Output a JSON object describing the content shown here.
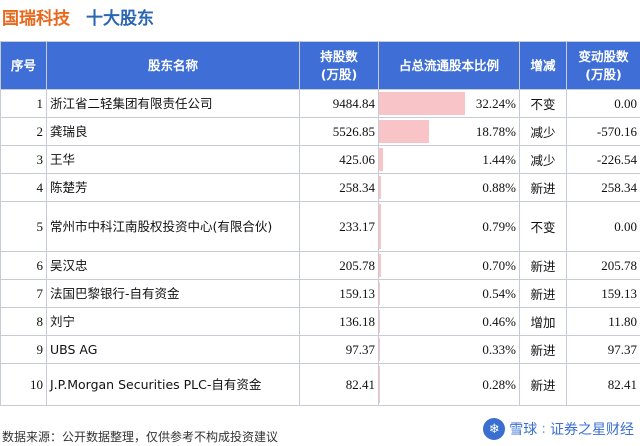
{
  "header": {
    "company": "国瑞科技",
    "subtitle": "十大股东"
  },
  "table": {
    "columns": [
      "序号",
      "股东名称",
      "持股数\n(万股)",
      "占总流通股本比例",
      "增减",
      "变动股数\n(万股)"
    ],
    "rows": [
      {
        "rank": "1",
        "name": "浙江省二轻集团有限责任公司",
        "shares": "9484.84",
        "ratio": "32.24%",
        "ratio_value": 32.24,
        "status": "不变",
        "status_type": "same",
        "change": "0.00",
        "change_type": "same"
      },
      {
        "rank": "2",
        "name": "龚瑞良",
        "shares": "5526.85",
        "ratio": "18.78%",
        "ratio_value": 18.78,
        "status": "减少",
        "status_type": "down",
        "change": "-570.16",
        "change_type": "down"
      },
      {
        "rank": "3",
        "name": "王华",
        "shares": "425.06",
        "ratio": "1.44%",
        "ratio_value": 1.44,
        "status": "减少",
        "status_type": "down",
        "change": "-226.54",
        "change_type": "down"
      },
      {
        "rank": "4",
        "name": "陈楚芳",
        "shares": "258.34",
        "ratio": "0.88%",
        "ratio_value": 0.88,
        "status": "新进",
        "status_type": "up",
        "change": "258.34",
        "change_type": "up"
      },
      {
        "rank": "5",
        "name": "常州市中科江南股权投资中心(有限合伙)",
        "shares": "233.17",
        "ratio": "0.79%",
        "ratio_value": 0.79,
        "status": "不变",
        "status_type": "same",
        "change": "0.00",
        "change_type": "same"
      },
      {
        "rank": "6",
        "name": "吴汉忠",
        "shares": "205.78",
        "ratio": "0.70%",
        "ratio_value": 0.7,
        "status": "新进",
        "status_type": "up",
        "change": "205.78",
        "change_type": "up"
      },
      {
        "rank": "7",
        "name": "法国巴黎银行-自有资金",
        "shares": "159.13",
        "ratio": "0.54%",
        "ratio_value": 0.54,
        "status": "新进",
        "status_type": "up",
        "change": "159.13",
        "change_type": "up"
      },
      {
        "rank": "8",
        "name": "刘宁",
        "shares": "136.18",
        "ratio": "0.46%",
        "ratio_value": 0.46,
        "status": "增加",
        "status_type": "up",
        "change": "11.80",
        "change_type": "up"
      },
      {
        "rank": "9",
        "name": "UBS AG",
        "shares": "97.37",
        "ratio": "0.33%",
        "ratio_value": 0.33,
        "status": "新进",
        "status_type": "up",
        "change": "97.37",
        "change_type": "up"
      },
      {
        "rank": "10",
        "name": "J.P.Morgan Securities PLC-自有资金",
        "shares": "82.41",
        "ratio": "0.28%",
        "ratio_value": 0.28,
        "status": "新进",
        "status_type": "up",
        "change": "82.41",
        "change_type": "up"
      }
    ]
  },
  "footer": {
    "source": "数据来源：公开数据整理，仅供参考不构成投资建议",
    "watermark_platform": "雪球",
    "watermark_account": "证券之星财经"
  },
  "colors": {
    "header_bg": "#3f6fd6",
    "title_company": "#e8681e",
    "title_subtitle": "#2a66b4",
    "ratio_bar": "#f8c4c8",
    "down": "#23a03c",
    "up": "#e0332a"
  }
}
